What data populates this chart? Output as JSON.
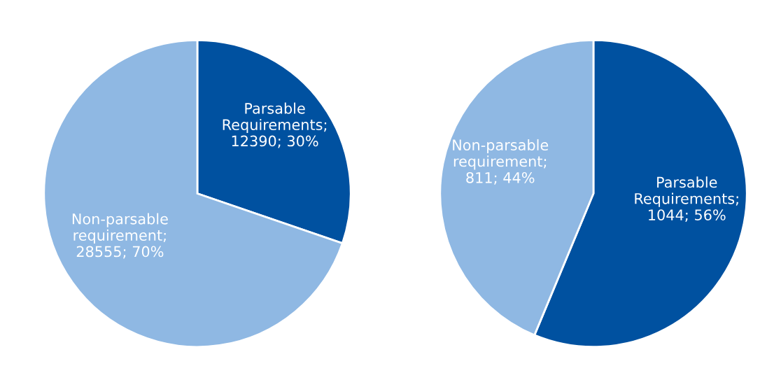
{
  "chart_data": [
    {
      "type": "pie",
      "categories": [
        "Parsable Requirements",
        "Non-parsable requirement"
      ],
      "values": [
        12390,
        28555
      ],
      "colors": [
        "#0051a0",
        "#8fb8e3"
      ],
      "value_labels": [
        ";\n12390; 30%",
        ";\n28555; 70%"
      ]
    },
    {
      "type": "pie",
      "categories": [
        "Parsable Requirements",
        "Non-parsable requirement"
      ],
      "values": [
        1044,
        811
      ],
      "colors": [
        "#0051a0",
        "#8fb8e3"
      ],
      "value_labels": [
        ";\n1044; 56%",
        ";\n811; 44%"
      ]
    }
  ]
}
